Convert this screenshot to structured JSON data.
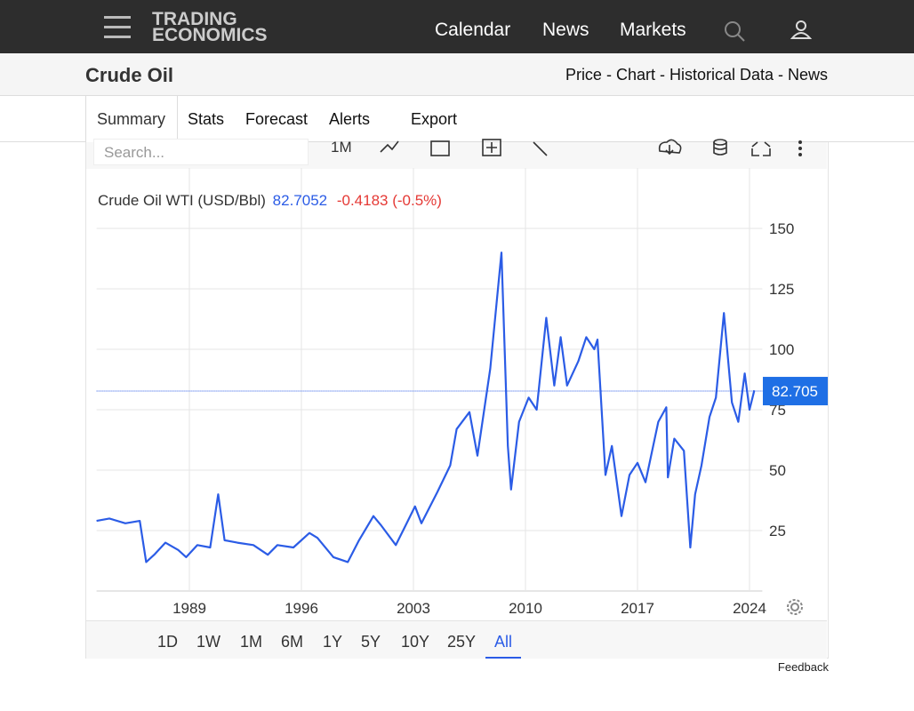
{
  "header": {
    "logo": [
      "TRADING",
      "ECONOMICS"
    ],
    "nav": [
      "Calendar",
      "News",
      "Markets"
    ]
  },
  "page": {
    "title": "Crude Oil",
    "links": "Price - Chart - Historical Data - News"
  },
  "tabs": [
    "Summary",
    "Stats",
    "Forecast",
    "Alerts",
    "Export"
  ],
  "toolbar": {
    "search": "Search...",
    "interval": "1M"
  },
  "chart_data": {
    "type": "line",
    "title": "Crude Oil WTI (USD/Bbl)",
    "change": "-0.4183 (-0.5%)",
    "last_price": 82.7052,
    "last_price_label": "82.705",
    "color": "#2b5ce6",
    "x": [
      1983.2,
      1984,
      1985,
      1985.9,
      1986.3,
      1986.8,
      1987.5,
      1988.3,
      1988.8,
      1989.5,
      1990.3,
      1990.8,
      1991.2,
      1992,
      1993,
      1993.9,
      1994.5,
      1995.5,
      1996.5,
      1997,
      1998,
      1998.9,
      1999.6,
      2000.5,
      2001,
      2001.9,
      2002.5,
      2003.1,
      2003.5,
      2004.5,
      2005.3,
      2005.7,
      2006.5,
      2007,
      2007.8,
      2008.5,
      2008.9,
      2009.1,
      2009.6,
      2010.2,
      2010.7,
      2011.3,
      2011.8,
      2012.2,
      2012.6,
      2013.3,
      2013.8,
      2014.3,
      2014.5,
      2015,
      2015.4,
      2016,
      2016.5,
      2017,
      2017.5,
      2018.3,
      2018.8,
      2018.9,
      2019.3,
      2019.9,
      2020.3,
      2020.6,
      2021,
      2021.5,
      2021.9,
      2022.4,
      2022.9,
      2023.3,
      2023.7,
      2024,
      2024.3
    ],
    "values": [
      29,
      30,
      28,
      29,
      12,
      15,
      20,
      17,
      14,
      19,
      18,
      40,
      21,
      20,
      19,
      15,
      19,
      18,
      24,
      22,
      14,
      12,
      21,
      31,
      27,
      19,
      27,
      35,
      28,
      41,
      52,
      67,
      74,
      56,
      92,
      140,
      60,
      42,
      70,
      80,
      75,
      113,
      85,
      105,
      85,
      95,
      105,
      100,
      104,
      48,
      60,
      31,
      48,
      53,
      45,
      70,
      76,
      47,
      63,
      58,
      18,
      40,
      52,
      72,
      80,
      115,
      78,
      70,
      90,
      75,
      83
    ],
    "xlim": [
      1983.2,
      2024.8
    ],
    "xticks": [
      1989,
      1996,
      2003,
      2010,
      2017,
      2024
    ],
    "ylim": [
      0,
      175
    ],
    "yticks": [
      25,
      50,
      75,
      100,
      125,
      150
    ],
    "grid": true
  },
  "ranges": [
    "1D",
    "1W",
    "1M",
    "6M",
    "1Y",
    "5Y",
    "10Y",
    "25Y",
    "All"
  ],
  "active_range": 8,
  "footer": "Feedback"
}
